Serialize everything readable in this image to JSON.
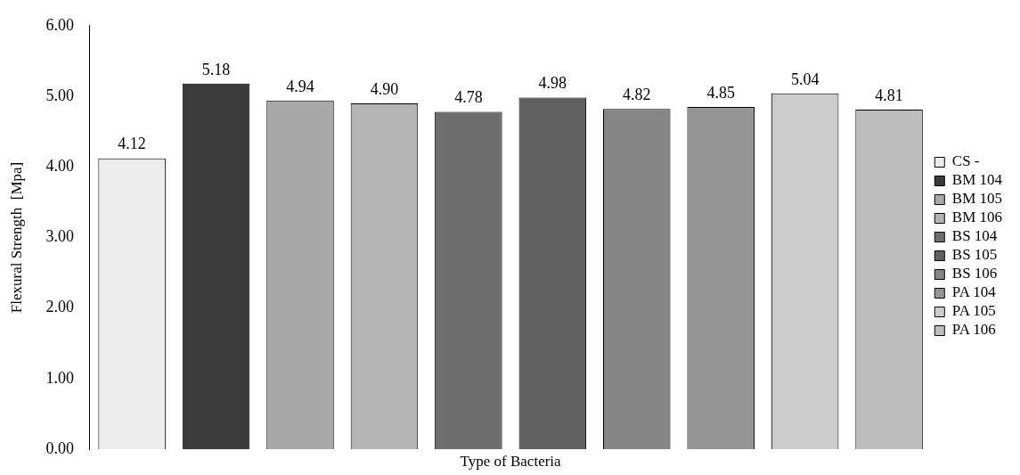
{
  "chart_data": {
    "type": "bar",
    "xlabel": "Type of Bacteria",
    "ylabel": "Flexural Strength  [Mpa]",
    "categories": [
      null,
      null,
      null,
      null,
      null,
      null,
      null,
      null,
      null,
      null
    ],
    "stacked": true,
    "series": [
      {
        "name": "CS -",
        "color": "#ececec",
        "values": [
          4.12,
          null,
          null,
          null,
          null,
          null,
          null,
          null,
          null,
          null
        ],
        "value_labels": [
          "4.12",
          null,
          null,
          null,
          null,
          null,
          null,
          null,
          null,
          null
        ]
      },
      {
        "name": "BM 104",
        "color": "#3a3a3a",
        "values": [
          null,
          5.18,
          null,
          null,
          null,
          null,
          null,
          null,
          null,
          null
        ],
        "value_labels": [
          null,
          "5.18",
          null,
          null,
          null,
          null,
          null,
          null,
          null,
          null
        ]
      },
      {
        "name": "BM 105",
        "color": "#a8a8a8",
        "values": [
          null,
          null,
          4.94,
          null,
          null,
          null,
          null,
          null,
          null,
          null
        ],
        "value_labels": [
          null,
          null,
          "4.94",
          null,
          null,
          null,
          null,
          null,
          null,
          null
        ]
      },
      {
        "name": "BM 106",
        "color": "#b4b4b4",
        "values": [
          null,
          null,
          null,
          4.9,
          null,
          null,
          null,
          null,
          null,
          null
        ],
        "value_labels": [
          null,
          null,
          null,
          "4.90",
          null,
          null,
          null,
          null,
          null,
          null
        ]
      },
      {
        "name": "BS 104",
        "color": "#6e6e6e",
        "values": [
          null,
          null,
          null,
          null,
          4.78,
          null,
          null,
          null,
          null,
          null
        ],
        "value_labels": [
          null,
          null,
          null,
          null,
          "4.78",
          null,
          null,
          null,
          null,
          null
        ]
      },
      {
        "name": "BS 105",
        "color": "#606060",
        "values": [
          null,
          null,
          null,
          null,
          null,
          4.98,
          null,
          null,
          null,
          null
        ],
        "value_labels": [
          null,
          null,
          null,
          null,
          null,
          "4.98",
          null,
          null,
          null,
          null
        ]
      },
      {
        "name": "BS 106",
        "color": "#858585",
        "values": [
          null,
          null,
          null,
          null,
          null,
          null,
          4.82,
          null,
          null,
          null
        ],
        "value_labels": [
          null,
          null,
          null,
          null,
          null,
          null,
          "4.82",
          null,
          null,
          null
        ]
      },
      {
        "name": "PA 104",
        "color": "#959595",
        "values": [
          null,
          null,
          null,
          null,
          null,
          null,
          null,
          4.85,
          null,
          null
        ],
        "value_labels": [
          null,
          null,
          null,
          null,
          null,
          null,
          null,
          "4.85",
          null,
          null
        ]
      },
      {
        "name": "PA 105",
        "color": "#cccccc",
        "values": [
          null,
          null,
          null,
          null,
          null,
          null,
          null,
          null,
          5.04,
          null
        ],
        "value_labels": [
          null,
          null,
          null,
          null,
          null,
          null,
          null,
          null,
          "5.04",
          null
        ]
      },
      {
        "name": "PA 106",
        "color": "#bdbdbd",
        "values": [
          null,
          null,
          null,
          null,
          null,
          null,
          null,
          null,
          null,
          4.81
        ],
        "value_labels": [
          null,
          null,
          null,
          null,
          null,
          null,
          null,
          null,
          null,
          "4.81"
        ]
      }
    ],
    "ylim": [
      0,
      6
    ],
    "yticks": [
      {
        "value": 0,
        "label": "0.00"
      },
      {
        "value": 1,
        "label": "1.00"
      },
      {
        "value": 2,
        "label": "2.00"
      },
      {
        "value": 3,
        "label": "3.00"
      },
      {
        "value": 4,
        "label": "4.00"
      },
      {
        "value": 5,
        "label": "5.00"
      },
      {
        "value": 6,
        "label": "6.00"
      }
    ],
    "tick_labels": "y",
    "legend": "right"
  }
}
